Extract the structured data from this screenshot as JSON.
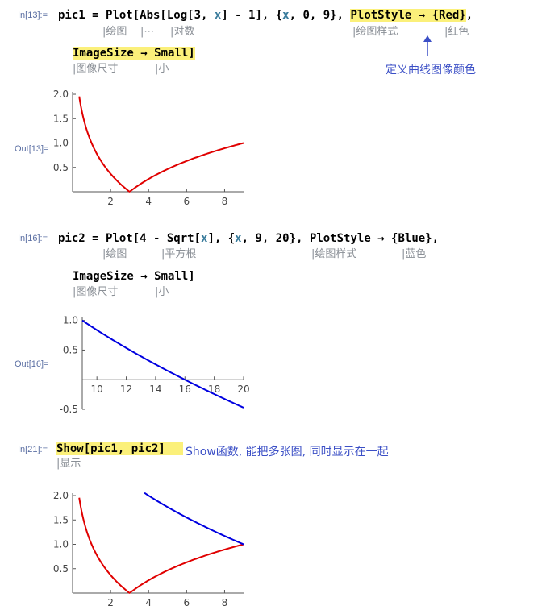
{
  "cell13": {
    "in_label": "In[13]:=",
    "out_label": "Out[13]=",
    "line1": {
      "lhs": "pic1 = Plot[Abs[Log[3, ",
      "x1": "x",
      "mid": "] - 1], {",
      "x2": "x",
      "range": ", 0, 9}, ",
      "style": "PlotStyle → {Red}",
      "comma": ","
    },
    "line2": "ImageSize → Small]",
    "gloss1": [
      "|绘图",
      "|⋯",
      "|对数",
      "|绘图样式",
      "|红色"
    ],
    "gloss2": [
      "|图像尺寸",
      "|小"
    ],
    "annotation": "定义曲线图像颜色"
  },
  "cell16": {
    "in_label": "In[16]:=",
    "out_label": "Out[16]=",
    "line1": {
      "lhs": "pic2 = Plot[4 - Sqrt[",
      "x1": "x",
      "mid": "], {",
      "x2": "x",
      "range": ", 9, 20}, PlotStyle → {Blue},"
    },
    "line2": "ImageSize → Small]",
    "gloss1": [
      "|绘图",
      "|平方根",
      "|绘图样式",
      "|蓝色"
    ],
    "gloss2": [
      "|图像尺寸",
      "|小"
    ]
  },
  "cell21": {
    "in_label": "In[21]:=",
    "code": "Show[pic1, pic2]",
    "gloss": "|显示",
    "annotation": "Show函数, 能把多张图, 同时显示在一起"
  },
  "colors": {
    "red": "#e00000",
    "blue": "#0000e0",
    "highlight": "#fbf07a",
    "note": "#3b4fc6"
  },
  "chart_data": [
    {
      "type": "line",
      "series": [
        {
          "function": "Abs[Log[3, x] - 1]",
          "color": "red"
        }
      ],
      "x_range": [
        0,
        9
      ],
      "xticks": [
        "2",
        "4",
        "6",
        "8"
      ],
      "yticks": [
        "0.5",
        "1.0",
        "1.5",
        "2.0"
      ],
      "ylim": [
        0,
        2.05
      ]
    },
    {
      "type": "line",
      "series": [
        {
          "function": "4 - Sqrt[x]",
          "color": "blue"
        }
      ],
      "x_range": [
        9,
        20
      ],
      "xticks": [
        "10",
        "12",
        "14",
        "16",
        "18",
        "20"
      ],
      "yticks": [
        "-0.5",
        "0.5",
        "1.0"
      ],
      "ylim": [
        -0.5,
        1.05
      ]
    },
    {
      "type": "line",
      "series": [
        {
          "function": "Abs[Log[3, x] - 1]",
          "color": "red"
        },
        {
          "function": "4 - Sqrt[x]",
          "color": "blue"
        }
      ],
      "x_range": [
        0,
        9
      ],
      "xticks": [
        "2",
        "4",
        "6",
        "8"
      ],
      "yticks": [
        "0.5",
        "1.0",
        "1.5",
        "2.0"
      ],
      "ylim": [
        0,
        2.05
      ]
    }
  ]
}
